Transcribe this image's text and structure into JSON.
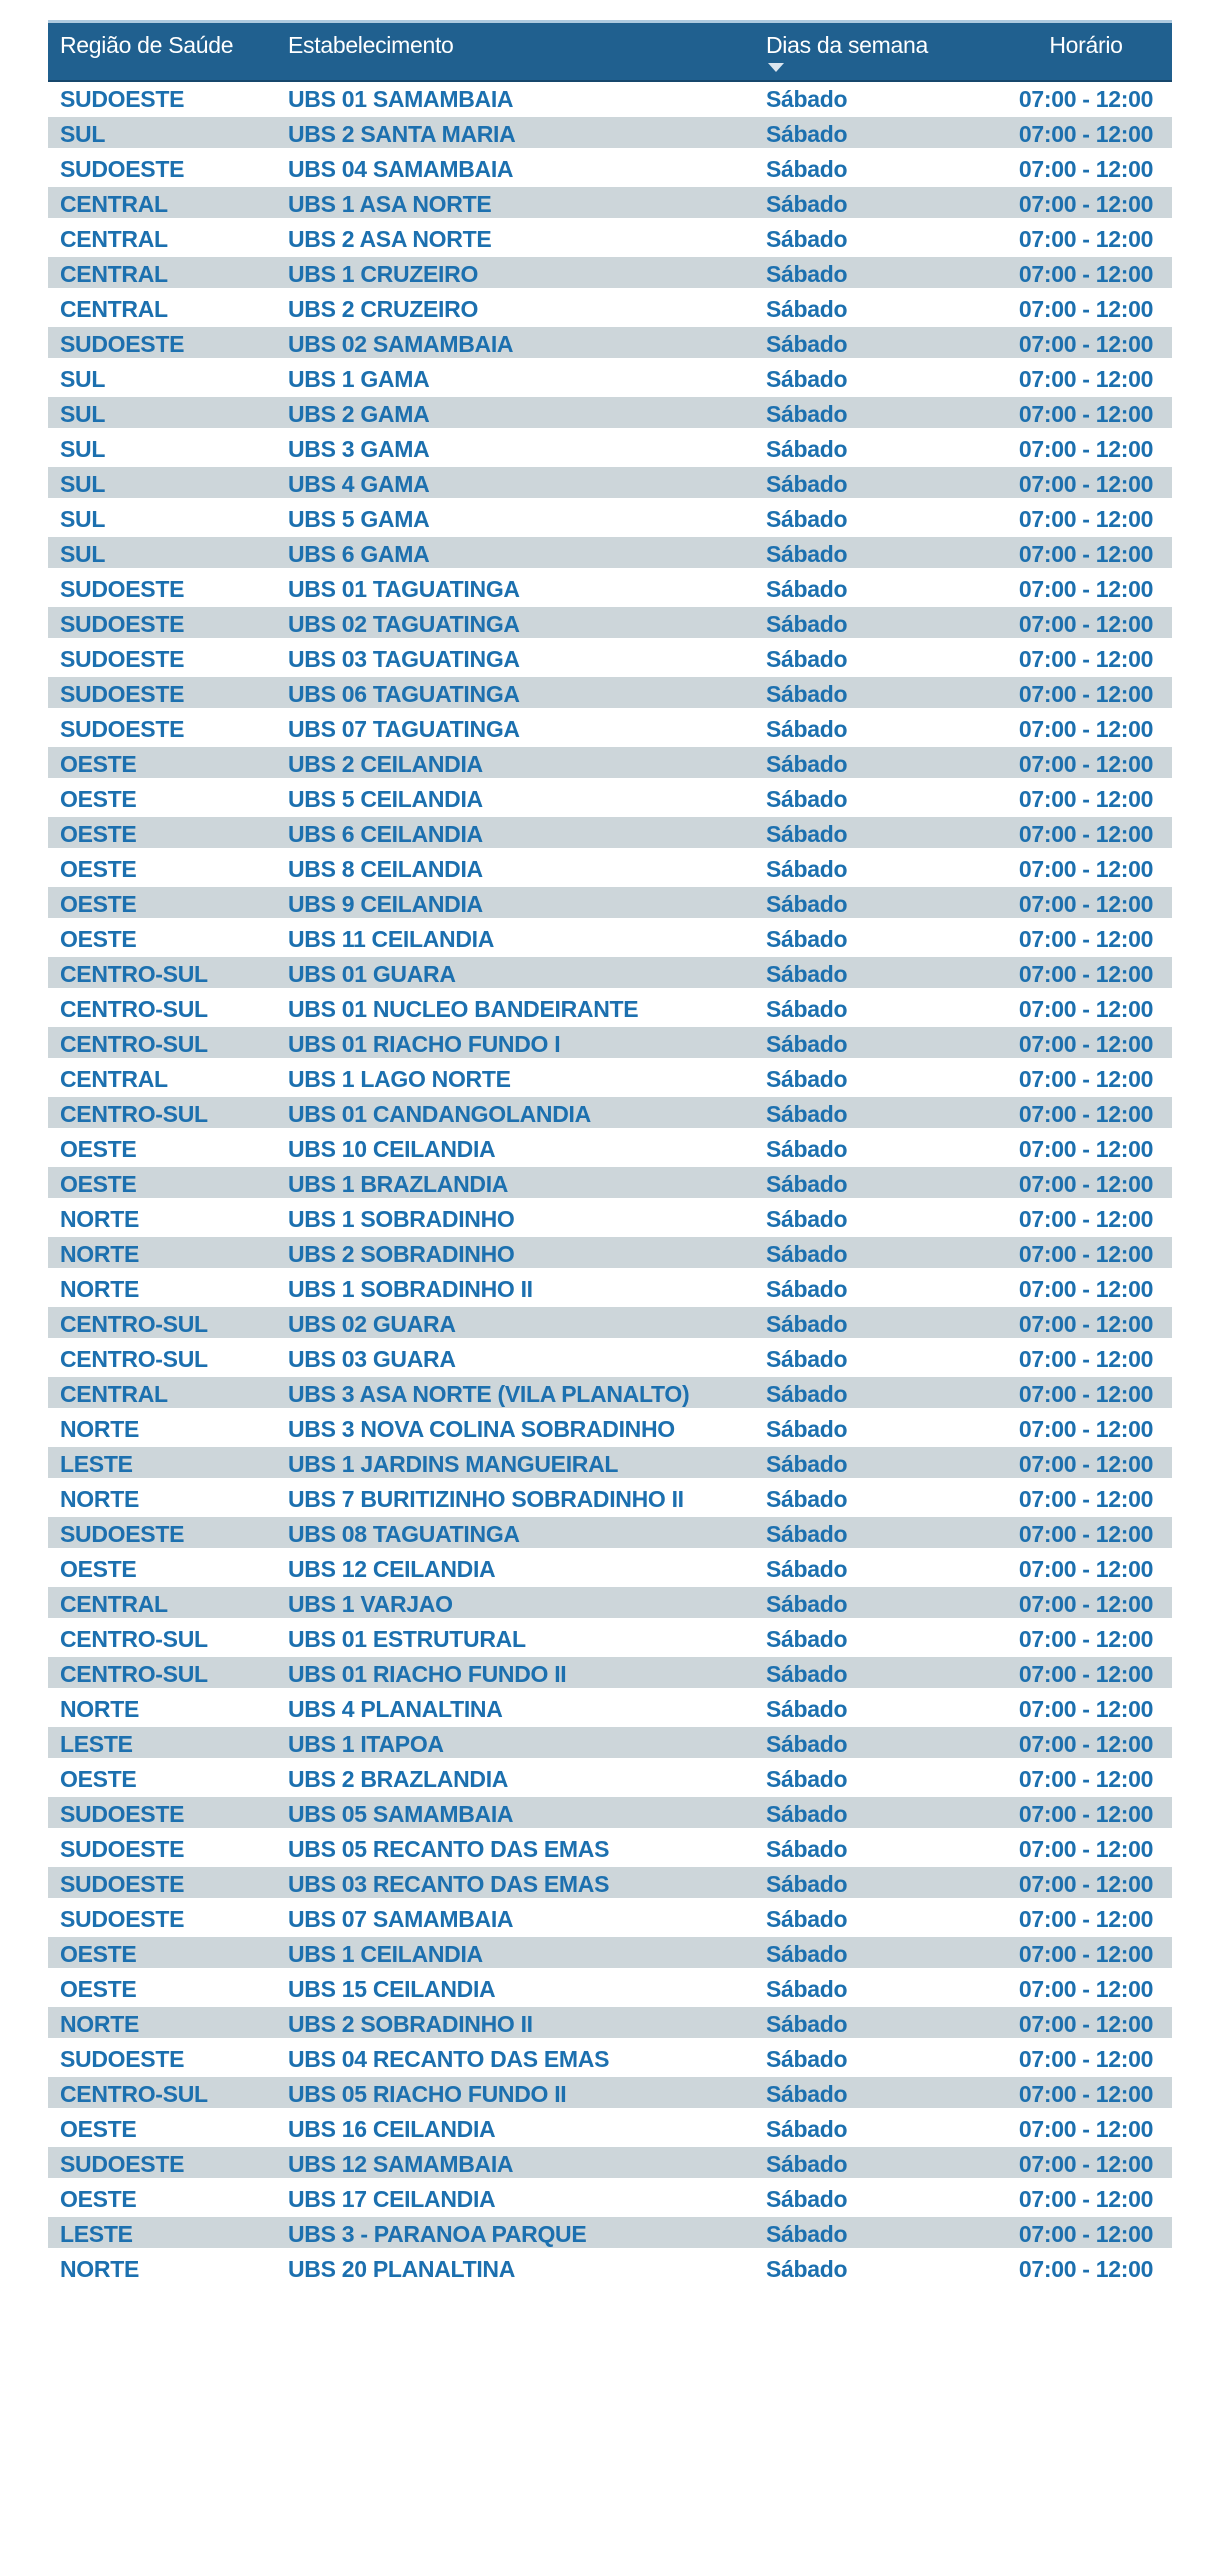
{
  "table": {
    "columns": [
      {
        "label": "Região de Saúde"
      },
      {
        "label": "Estabelecimento"
      },
      {
        "label": "Dias da semana",
        "sort_icon": "sort-descending-triangle",
        "sort_direction": "descending"
      },
      {
        "label": "Horário"
      }
    ],
    "rows": [
      [
        "SUDOESTE",
        "UBS 01 SAMAMBAIA",
        "Sábado",
        "07:00 - 12:00"
      ],
      [
        "SUL",
        "UBS 2 SANTA MARIA",
        "Sábado",
        "07:00 - 12:00"
      ],
      [
        "SUDOESTE",
        "UBS 04 SAMAMBAIA",
        "Sábado",
        "07:00 - 12:00"
      ],
      [
        "CENTRAL",
        "UBS 1 ASA NORTE",
        "Sábado",
        "07:00 - 12:00"
      ],
      [
        "CENTRAL",
        "UBS 2 ASA NORTE",
        "Sábado",
        "07:00 - 12:00"
      ],
      [
        "CENTRAL",
        "UBS 1 CRUZEIRO",
        "Sábado",
        "07:00 - 12:00"
      ],
      [
        "CENTRAL",
        "UBS 2 CRUZEIRO",
        "Sábado",
        "07:00 - 12:00"
      ],
      [
        "SUDOESTE",
        "UBS 02 SAMAMBAIA",
        "Sábado",
        "07:00 - 12:00"
      ],
      [
        "SUL",
        "UBS 1 GAMA",
        "Sábado",
        "07:00 - 12:00"
      ],
      [
        "SUL",
        "UBS 2 GAMA",
        "Sábado",
        "07:00 - 12:00"
      ],
      [
        "SUL",
        "UBS 3 GAMA",
        "Sábado",
        "07:00 - 12:00"
      ],
      [
        "SUL",
        "UBS 4 GAMA",
        "Sábado",
        "07:00 - 12:00"
      ],
      [
        "SUL",
        "UBS 5 GAMA",
        "Sábado",
        "07:00 - 12:00"
      ],
      [
        "SUL",
        "UBS 6 GAMA",
        "Sábado",
        "07:00 - 12:00"
      ],
      [
        "SUDOESTE",
        "UBS 01 TAGUATINGA",
        "Sábado",
        "07:00 - 12:00"
      ],
      [
        "SUDOESTE",
        "UBS 02 TAGUATINGA",
        "Sábado",
        "07:00 - 12:00"
      ],
      [
        "SUDOESTE",
        "UBS 03 TAGUATINGA",
        "Sábado",
        "07:00 - 12:00"
      ],
      [
        "SUDOESTE",
        "UBS 06 TAGUATINGA",
        "Sábado",
        "07:00 - 12:00"
      ],
      [
        "SUDOESTE",
        "UBS 07 TAGUATINGA",
        "Sábado",
        "07:00 - 12:00"
      ],
      [
        "OESTE",
        "UBS 2 CEILANDIA",
        "Sábado",
        "07:00 - 12:00"
      ],
      [
        "OESTE",
        "UBS 5 CEILANDIA",
        "Sábado",
        "07:00 - 12:00"
      ],
      [
        "OESTE",
        "UBS 6 CEILANDIA",
        "Sábado",
        "07:00 - 12:00"
      ],
      [
        "OESTE",
        "UBS 8 CEILANDIA",
        "Sábado",
        "07:00 - 12:00"
      ],
      [
        "OESTE",
        "UBS 9 CEILANDIA",
        "Sábado",
        "07:00 - 12:00"
      ],
      [
        "OESTE",
        "UBS 11 CEILANDIA",
        "Sábado",
        "07:00 - 12:00"
      ],
      [
        "CENTRO-SUL",
        "UBS 01 GUARA",
        "Sábado",
        "07:00 - 12:00"
      ],
      [
        "CENTRO-SUL",
        "UBS 01 NUCLEO BANDEIRANTE",
        "Sábado",
        "07:00 - 12:00"
      ],
      [
        "CENTRO-SUL",
        "UBS 01 RIACHO FUNDO I",
        "Sábado",
        "07:00 - 12:00"
      ],
      [
        "CENTRAL",
        "UBS 1 LAGO NORTE",
        "Sábado",
        "07:00 - 12:00"
      ],
      [
        "CENTRO-SUL",
        "UBS 01 CANDANGOLANDIA",
        "Sábado",
        "07:00 - 12:00"
      ],
      [
        "OESTE",
        "UBS 10 CEILANDIA",
        "Sábado",
        "07:00 - 12:00"
      ],
      [
        "OESTE",
        "UBS 1 BRAZLANDIA",
        "Sábado",
        "07:00 - 12:00"
      ],
      [
        "NORTE",
        "UBS 1 SOBRADINHO",
        "Sábado",
        "07:00 - 12:00"
      ],
      [
        "NORTE",
        "UBS 2 SOBRADINHO",
        "Sábado",
        "07:00 - 12:00"
      ],
      [
        "NORTE",
        "UBS 1 SOBRADINHO II",
        "Sábado",
        "07:00 - 12:00"
      ],
      [
        "CENTRO-SUL",
        "UBS 02 GUARA",
        "Sábado",
        "07:00 - 12:00"
      ],
      [
        "CENTRO-SUL",
        "UBS 03 GUARA",
        "Sábado",
        "07:00 - 12:00"
      ],
      [
        "CENTRAL",
        "UBS 3 ASA NORTE (VILA PLANALTO)",
        "Sábado",
        "07:00 - 12:00"
      ],
      [
        "NORTE",
        "UBS 3 NOVA COLINA SOBRADINHO",
        "Sábado",
        "07:00 - 12:00"
      ],
      [
        "LESTE",
        "UBS 1 JARDINS MANGUEIRAL",
        "Sábado",
        "07:00 - 12:00"
      ],
      [
        "NORTE",
        "UBS 7 BURITIZINHO SOBRADINHO II",
        "Sábado",
        "07:00 - 12:00"
      ],
      [
        "SUDOESTE",
        "UBS 08 TAGUATINGA",
        "Sábado",
        "07:00 - 12:00"
      ],
      [
        "OESTE",
        "UBS 12 CEILANDIA",
        "Sábado",
        "07:00 - 12:00"
      ],
      [
        "CENTRAL",
        "UBS 1 VARJAO",
        "Sábado",
        "07:00 - 12:00"
      ],
      [
        "CENTRO-SUL",
        "UBS 01 ESTRUTURAL",
        "Sábado",
        "07:00 - 12:00"
      ],
      [
        "CENTRO-SUL",
        "UBS 01 RIACHO FUNDO II",
        "Sábado",
        "07:00 - 12:00"
      ],
      [
        "NORTE",
        "UBS 4 PLANALTINA",
        "Sábado",
        "07:00 - 12:00"
      ],
      [
        "LESTE",
        "UBS 1 ITAPOA",
        "Sábado",
        "07:00 - 12:00"
      ],
      [
        "OESTE",
        "UBS 2 BRAZLANDIA",
        "Sábado",
        "07:00 - 12:00"
      ],
      [
        "SUDOESTE",
        "UBS 05 SAMAMBAIA",
        "Sábado",
        "07:00 - 12:00"
      ],
      [
        "SUDOESTE",
        "UBS 05 RECANTO DAS EMAS",
        "Sábado",
        "07:00 - 12:00"
      ],
      [
        "SUDOESTE",
        "UBS 03 RECANTO DAS EMAS",
        "Sábado",
        "07:00 - 12:00"
      ],
      [
        "SUDOESTE",
        "UBS 07 SAMAMBAIA",
        "Sábado",
        "07:00 - 12:00"
      ],
      [
        "OESTE",
        "UBS 1 CEILANDIA",
        "Sábado",
        "07:00 - 12:00"
      ],
      [
        "OESTE",
        "UBS 15 CEILANDIA",
        "Sábado",
        "07:00 - 12:00"
      ],
      [
        "NORTE",
        "UBS 2 SOBRADINHO II",
        "Sábado",
        "07:00 - 12:00"
      ],
      [
        "SUDOESTE",
        "UBS 04 RECANTO DAS EMAS",
        "Sábado",
        "07:00 - 12:00"
      ],
      [
        "CENTRO-SUL",
        "UBS 05 RIACHO FUNDO II",
        "Sábado",
        "07:00 - 12:00"
      ],
      [
        "OESTE",
        "UBS 16 CEILANDIA",
        "Sábado",
        "07:00 - 12:00"
      ],
      [
        "SUDOESTE",
        "UBS 12 SAMAMBAIA",
        "Sábado",
        "07:00 - 12:00"
      ],
      [
        "OESTE",
        "UBS 17 CEILANDIA",
        "Sábado",
        "07:00 - 12:00"
      ],
      [
        "LESTE",
        "UBS 3 - PARANOA PARQUE",
        "Sábado",
        "07:00 - 12:00"
      ],
      [
        "NORTE",
        "UBS 20 PLANALTINA",
        "Sábado",
        "07:00 - 12:00"
      ]
    ],
    "colors": {
      "header_bg": "#20608F",
      "header_text": "#FFFFFF",
      "header_top_border": "#AECADF",
      "header_bottom_border": "#17476C",
      "row_text": "#1C70AF",
      "row_bg": "#FFFFFF",
      "row_alt_bg": "#CDD6DA",
      "canvas_bg": "#FFFFFF"
    }
  }
}
